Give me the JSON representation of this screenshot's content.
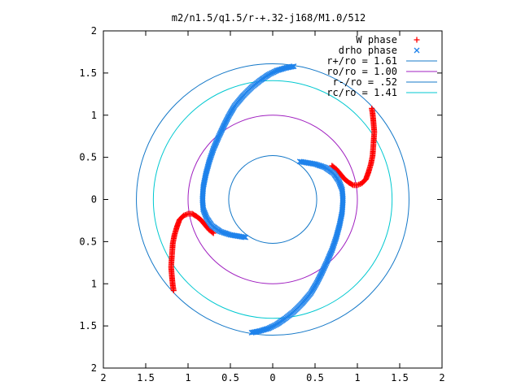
{
  "chart_data": {
    "type": "scatter",
    "title": "m2/n1.5/q1.5/r-+.32-j168/M1.0/512",
    "xlabel": "",
    "ylabel": "",
    "xlim": [
      -2,
      2
    ],
    "ylim": [
      -2,
      2
    ],
    "x_tick_labels": [
      "2",
      "1.5",
      "1",
      "0.5",
      "0",
      "0.5",
      "1",
      "1.5",
      "2"
    ],
    "y_tick_labels": [
      "2",
      "1.5",
      "1",
      "0.5",
      "0",
      "0.5",
      "1",
      "1.5",
      "2"
    ],
    "grid": false,
    "legend_position": "top-right",
    "series": [
      {
        "name": "W phase",
        "kind": "points",
        "marker": "plus",
        "color": "#ff0000",
        "segments": [
          {
            "x": [
              1.17,
              1.18,
              1.19,
              1.2,
              1.19,
              1.18,
              1.16,
              1.13,
              1.1,
              1.05,
              1.0,
              0.95,
              0.9,
              0.85,
              0.8,
              0.75,
              0.7
            ],
            "y": [
              1.08,
              1.02,
              0.92,
              0.8,
              0.66,
              0.52,
              0.42,
              0.32,
              0.24,
              0.19,
              0.17,
              0.17,
              0.2,
              0.24,
              0.3,
              0.36,
              0.4
            ]
          },
          {
            "x": [
              -1.17,
              -1.18,
              -1.19,
              -1.2,
              -1.19,
              -1.18,
              -1.16,
              -1.13,
              -1.1,
              -1.05,
              -1.0,
              -0.95,
              -0.9,
              -0.85,
              -0.8,
              -0.75,
              -0.7
            ],
            "y": [
              -1.08,
              -1.02,
              -0.92,
              -0.8,
              -0.66,
              -0.52,
              -0.42,
              -0.32,
              -0.24,
              -0.19,
              -0.17,
              -0.17,
              -0.2,
              -0.24,
              -0.3,
              -0.36,
              -0.4
            ]
          }
        ]
      },
      {
        "name": "drho phase",
        "kind": "points",
        "marker": "cross",
        "color": "#1e82eb",
        "segments": [
          {
            "x": [
              0.25,
              0.15,
              0.05,
              -0.05,
              -0.15,
              -0.25,
              -0.35,
              -0.45,
              -0.52,
              -0.58,
              -0.64,
              -0.7,
              -0.75,
              -0.79,
              -0.82,
              -0.83,
              -0.82,
              -0.78,
              -0.72,
              -0.62,
              -0.5,
              -0.32
            ],
            "y": [
              1.58,
              1.56,
              1.53,
              1.48,
              1.41,
              1.33,
              1.23,
              1.11,
              0.99,
              0.87,
              0.74,
              0.6,
              0.45,
              0.3,
              0.15,
              0.0,
              -0.12,
              -0.22,
              -0.31,
              -0.38,
              -0.42,
              -0.45
            ]
          },
          {
            "x": [
              -0.25,
              -0.15,
              -0.05,
              0.05,
              0.15,
              0.25,
              0.35,
              0.45,
              0.52,
              0.58,
              0.64,
              0.7,
              0.75,
              0.79,
              0.82,
              0.83,
              0.82,
              0.78,
              0.72,
              0.62,
              0.5,
              0.32
            ],
            "y": [
              -1.58,
              -1.56,
              -1.53,
              -1.48,
              -1.41,
              -1.33,
              -1.23,
              -1.11,
              -0.99,
              -0.87,
              -0.74,
              -0.6,
              -0.45,
              -0.3,
              -0.15,
              0.0,
              0.12,
              0.22,
              0.31,
              0.38,
              0.42,
              0.45
            ]
          }
        ]
      },
      {
        "name": "r+/ro = 1.61",
        "kind": "circle",
        "radius": 1.61,
        "color": "#1478c8"
      },
      {
        "name": "ro/ro = 1.00",
        "kind": "circle",
        "radius": 1.0,
        "color": "#a020c0"
      },
      {
        "name": "r-/ro = .52",
        "kind": "circle",
        "radius": 0.52,
        "color": "#1478c8"
      },
      {
        "name": "rc/ro = 1.41",
        "kind": "circle",
        "radius": 1.41,
        "color": "#00c8d0"
      }
    ]
  }
}
